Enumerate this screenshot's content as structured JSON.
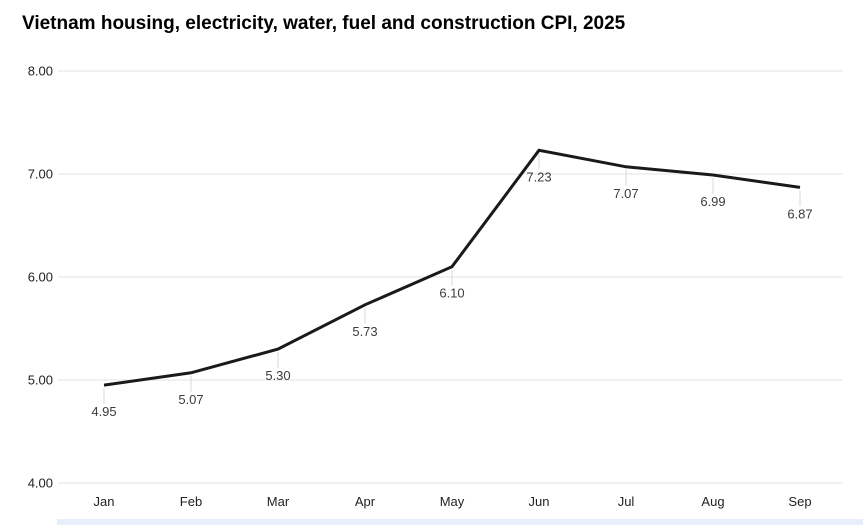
{
  "title": "Vietnam housing, electricity, water, fuel and construction CPI, 2025",
  "chart_data": {
    "type": "line",
    "title": "Vietnam housing, electricity, water, fuel and construction CPI, 2025",
    "categories": [
      "Jan",
      "Feb",
      "Mar",
      "Apr",
      "May",
      "Jun",
      "Jul",
      "Aug",
      "Sep"
    ],
    "series": [
      {
        "name": "CPI",
        "values": [
          4.95,
          5.07,
          5.3,
          5.73,
          6.1,
          7.23,
          7.07,
          6.99,
          6.87
        ]
      }
    ],
    "data_labels": [
      "4.95",
      "5.07",
      "5.30",
      "5.73",
      "6.10",
      "7.23",
      "7.07",
      "6.99",
      "6.87"
    ],
    "y_ticks": [
      "8.00",
      "7.00",
      "6.00",
      "5.00",
      "4.00"
    ],
    "ylim": [
      4.0,
      8.0
    ],
    "xlabel": "",
    "ylabel": "",
    "grid": true,
    "legend_position": "none",
    "colors": {
      "line": "#1a1a1a",
      "grid": "#e3e3e3",
      "leader": "#d9d9d9",
      "data_label": "#3c3c3c",
      "axis_label": "#222222",
      "title": "#000000",
      "bottom_bar": "#e6effa"
    }
  }
}
